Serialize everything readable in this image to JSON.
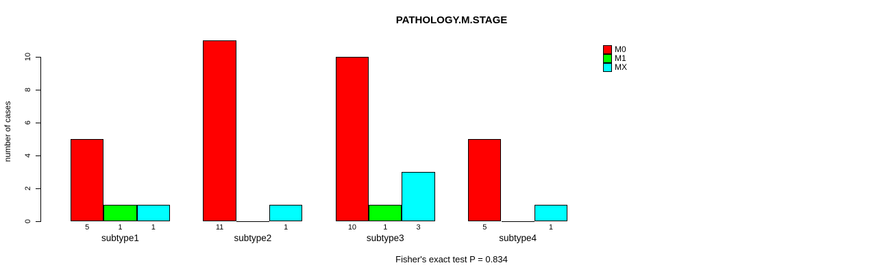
{
  "title": "PATHOLOGY.M.STAGE",
  "ylabel": "number of cases",
  "footer": "Fisher's exact test P = 0.834",
  "chart_data": {
    "type": "bar",
    "grouped": true,
    "title": "PATHOLOGY.M.STAGE",
    "xlabel": "",
    "ylabel": "number of cases",
    "categories": [
      "subtype1",
      "subtype2",
      "subtype3",
      "subtype4"
    ],
    "series": [
      {
        "name": "M0",
        "color": "#ff0000",
        "values": [
          5,
          11,
          10,
          5
        ]
      },
      {
        "name": "M1",
        "color": "#00ff00",
        "values": [
          1,
          0,
          1,
          0
        ]
      },
      {
        "name": "MX",
        "color": "#00ffff",
        "values": [
          1,
          1,
          3,
          1
        ]
      }
    ],
    "yticks": [
      0,
      2,
      4,
      6,
      8,
      10
    ],
    "ylim": [
      0,
      11
    ],
    "grid": false,
    "legend_position": "top-right",
    "bar_value_labels": true,
    "zero_bars_drawn_as_baseline_segment": true,
    "annotation": "Fisher's exact test P = 0.834",
    "axis_color": "#000000",
    "background_color": "#ffffff"
  }
}
